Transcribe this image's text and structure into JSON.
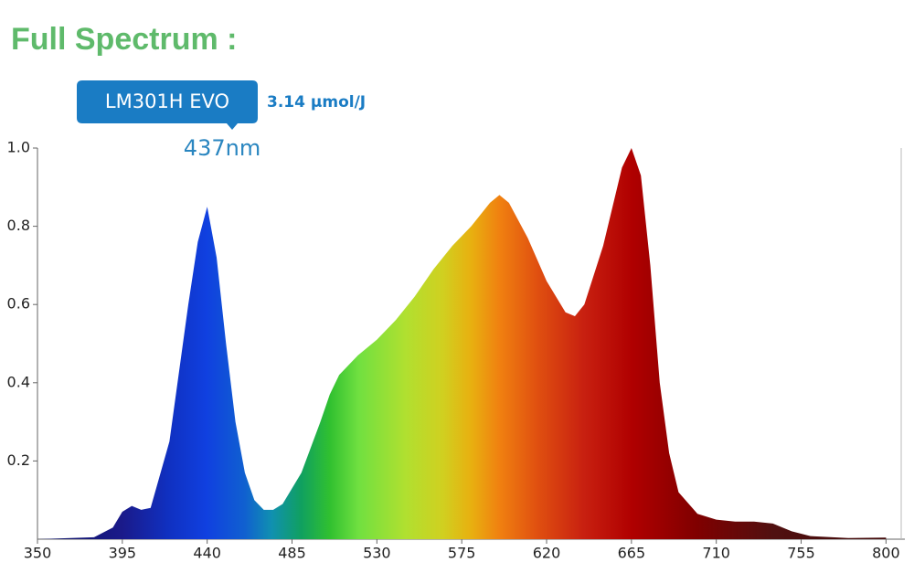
{
  "chart_data": {
    "type": "area",
    "title": "Full Spectrum :",
    "badge": "LM301H EVO",
    "efficacy": "3.14 µmol/J",
    "peak_label": "437nm",
    "x": [
      350,
      380,
      390,
      395,
      400,
      405,
      410,
      420,
      430,
      435,
      440,
      445,
      450,
      455,
      460,
      465,
      470,
      475,
      480,
      490,
      500,
      505,
      510,
      520,
      530,
      540,
      550,
      560,
      570,
      580,
      590,
      595,
      600,
      610,
      620,
      630,
      635,
      640,
      650,
      660,
      665,
      670,
      675,
      680,
      685,
      690,
      700,
      710,
      720,
      730,
      740,
      750,
      760,
      780,
      800
    ],
    "values": [
      0.0,
      0.005,
      0.03,
      0.07,
      0.085,
      0.075,
      0.08,
      0.25,
      0.6,
      0.76,
      0.85,
      0.72,
      0.5,
      0.3,
      0.17,
      0.1,
      0.075,
      0.075,
      0.09,
      0.17,
      0.3,
      0.37,
      0.42,
      0.47,
      0.51,
      0.56,
      0.62,
      0.69,
      0.75,
      0.8,
      0.86,
      0.88,
      0.86,
      0.77,
      0.66,
      0.58,
      0.57,
      0.6,
      0.75,
      0.95,
      1.0,
      0.93,
      0.7,
      0.4,
      0.22,
      0.12,
      0.065,
      0.05,
      0.045,
      0.045,
      0.04,
      0.02,
      0.008,
      0.003,
      0.004
    ],
    "xlim": [
      350,
      810
    ],
    "xticks": [
      350,
      395,
      440,
      485,
      530,
      575,
      620,
      665,
      710,
      755,
      800
    ],
    "ylim": [
      0,
      1
    ],
    "yticks": [
      0.2,
      0.4,
      0.6,
      0.8,
      {
        "value": 1,
        "label": "1.0"
      }
    ]
  }
}
